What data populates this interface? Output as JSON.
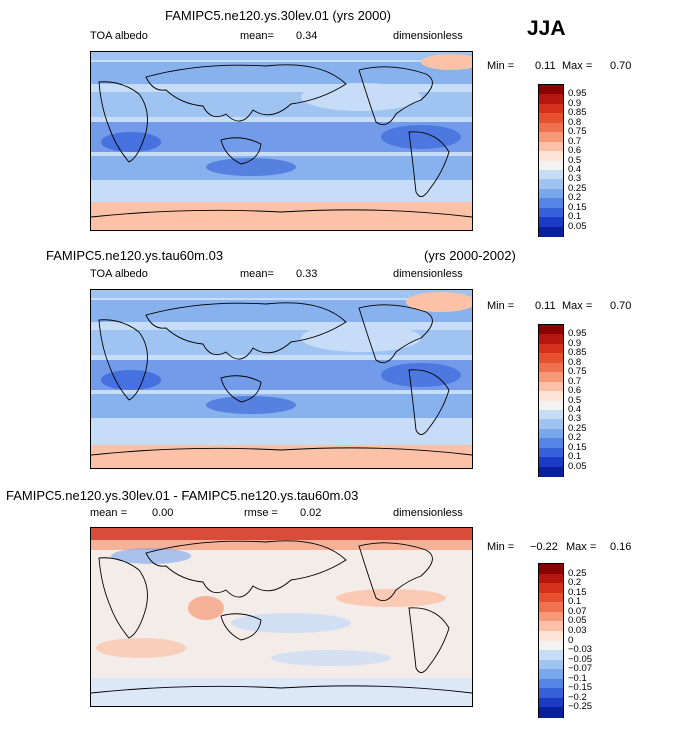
{
  "season": "JJA",
  "panels": [
    {
      "title": "FAMIPC5.ne120.ys.30lev.01 (yrs 2000)",
      "left_label": "TOA albedo",
      "mid_label": "mean=",
      "mid_value": "0.34",
      "right_label": "dimensionless",
      "min_label": "Min =",
      "min_value": "0.11",
      "max_label": "Max =",
      "max_value": "0.70"
    },
    {
      "title": "FAMIPC5.ne120.ys.tau60m.03",
      "title_right": "(yrs 2000-2002)",
      "left_label": "TOA albedo",
      "mid_label": "mean=",
      "mid_value": "0.33",
      "right_label": "dimensionless",
      "min_label": "Min =",
      "min_value": "0.11",
      "max_label": "Max =",
      "max_value": "0.70"
    },
    {
      "title": "FAMIPC5.ne120.ys.30lev.01 - FAMIPC5.ne120.ys.tau60m.03",
      "left_label": "mean =",
      "left_value": "0.00",
      "mid_label": "rmse =",
      "mid_value": "0.02",
      "right_label": "dimensionless",
      "min_label": "Min =",
      "min_value": "−0.22",
      "max_label": "Max =",
      "max_value": "0.16"
    }
  ],
  "chart_data": [
    {
      "type": "heatmap",
      "field": "TOA albedo",
      "units": "dimensionless",
      "mean": 0.34,
      "min": 0.11,
      "max": 0.7,
      "colorbar_levels": [
        "0.95",
        "0.9",
        "0.85",
        "0.8",
        "0.75",
        "0.7",
        "0.6",
        "0.5",
        "0.4",
        "0.3",
        "0.25",
        "0.2",
        "0.15",
        "0.1",
        "0.05"
      ],
      "colorbar_colors": [
        "#8b0000",
        "#b5170e",
        "#d4301a",
        "#e5502e",
        "#f07150",
        "#f79978",
        "#fbc2a8",
        "#fde4d6",
        "#f2f2f2",
        "#c7dcf6",
        "#9fc4f2",
        "#78a7ec",
        "#5585e4",
        "#3560d8",
        "#1b3bc4",
        "#0a1f9c"
      ]
    },
    {
      "type": "heatmap",
      "field": "TOA albedo",
      "units": "dimensionless",
      "mean": 0.33,
      "min": 0.11,
      "max": 0.7,
      "colorbar_levels": [
        "0.95",
        "0.9",
        "0.85",
        "0.8",
        "0.75",
        "0.7",
        "0.6",
        "0.5",
        "0.4",
        "0.3",
        "0.25",
        "0.2",
        "0.15",
        "0.1",
        "0.05"
      ],
      "colorbar_colors": [
        "#8b0000",
        "#b5170e",
        "#d4301a",
        "#e5502e",
        "#f07150",
        "#f79978",
        "#fbc2a8",
        "#fde4d6",
        "#f2f2f2",
        "#c7dcf6",
        "#9fc4f2",
        "#78a7ec",
        "#5585e4",
        "#3560d8",
        "#1b3bc4",
        "#0a1f9c"
      ]
    },
    {
      "type": "heatmap",
      "field": "difference",
      "units": "dimensionless",
      "mean": 0.0,
      "rmse": 0.02,
      "min": -0.22,
      "max": 0.16,
      "colorbar_levels": [
        "0.25",
        "0.2",
        "0.15",
        "0.1",
        "0.07",
        "0.05",
        "0.03",
        "0",
        "−0.03",
        "−0.05",
        "−0.07",
        "−0.1",
        "−0.15",
        "−0.2",
        "−0.25"
      ],
      "colorbar_colors": [
        "#8b0000",
        "#b5170e",
        "#d4301a",
        "#e5502e",
        "#f07150",
        "#f79978",
        "#fbc2a8",
        "#fde4d6",
        "#f2f2f2",
        "#c7dcf6",
        "#9fc4f2",
        "#78a7ec",
        "#5585e4",
        "#3560d8",
        "#1b3bc4",
        "#0a1f9c"
      ]
    }
  ]
}
